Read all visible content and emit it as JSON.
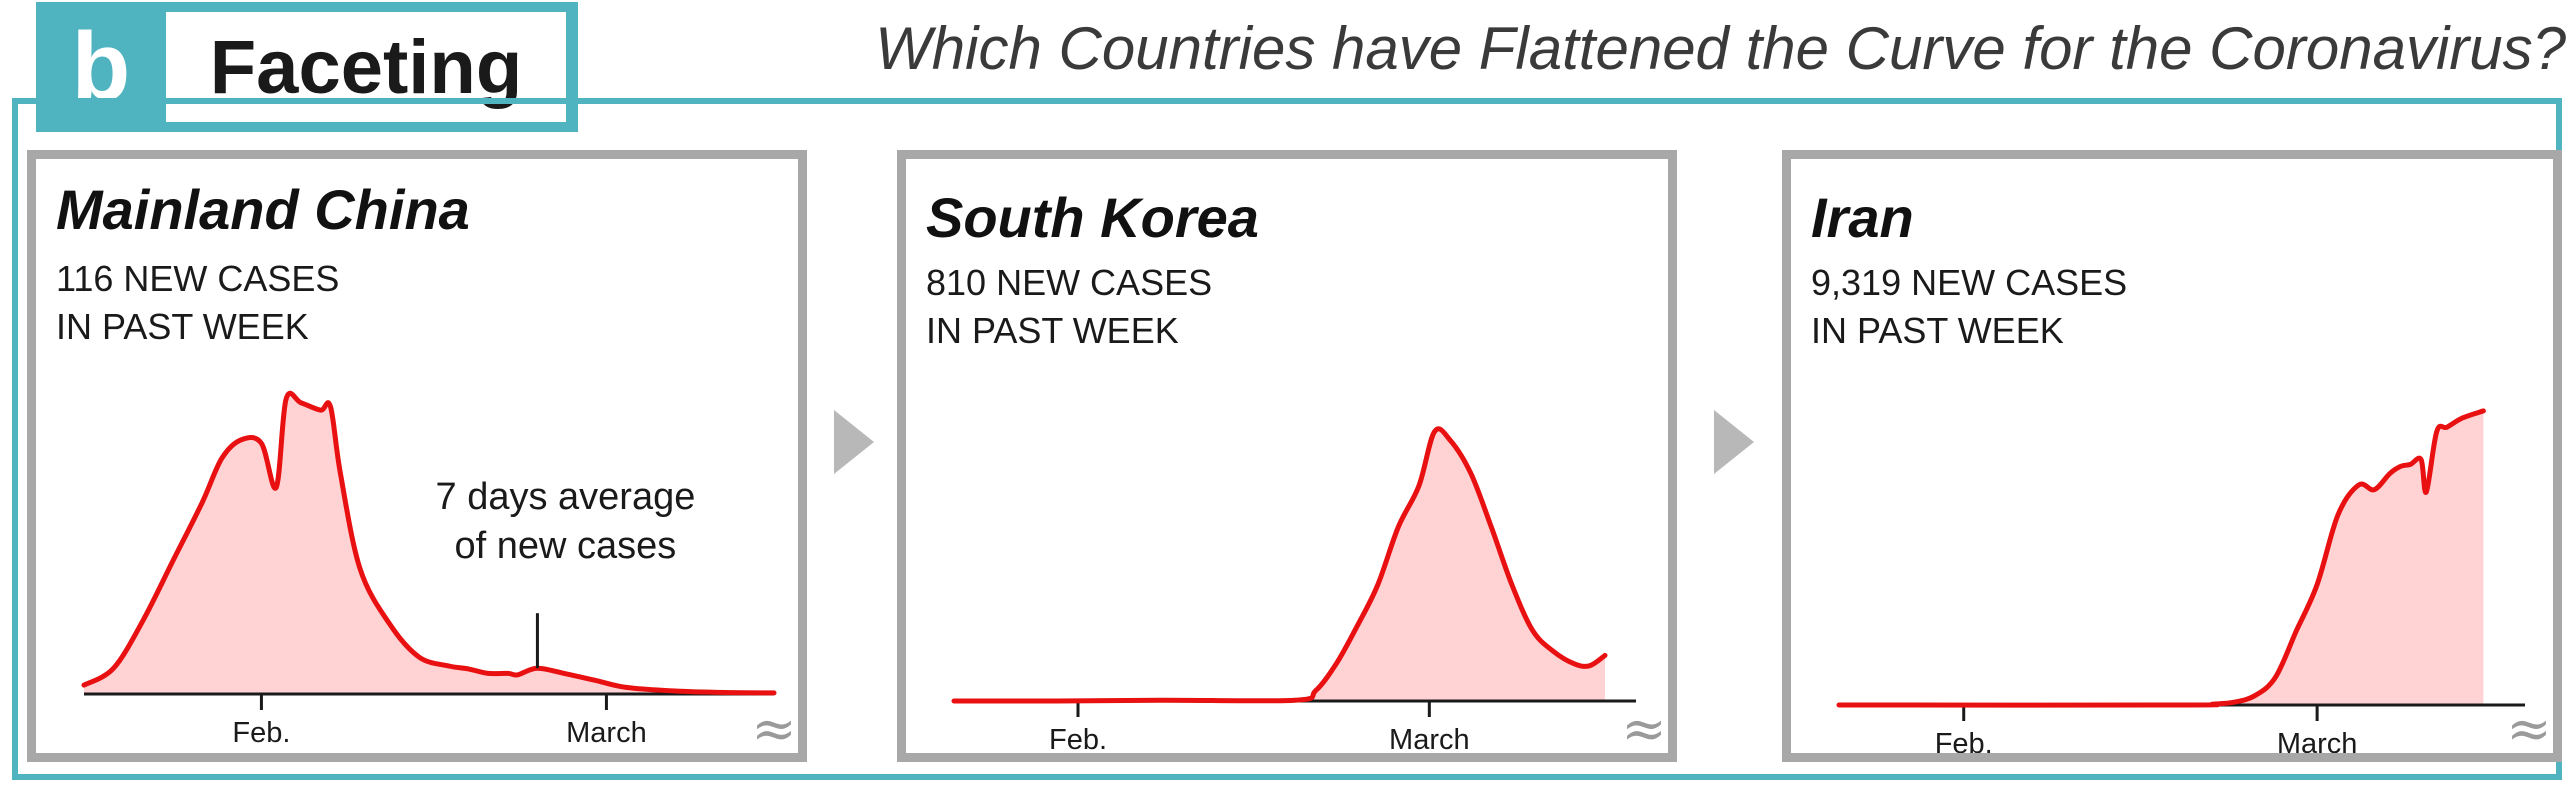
{
  "badge": {
    "letter": "b",
    "label": "Faceting"
  },
  "headline": "Which Countries have Flattened the Curve for the Coronavirus?",
  "logo_glyph": "≈",
  "colors": {
    "frame": "#4fb3c0",
    "panel_border": "#a8a8a8",
    "line": "#e81010",
    "fill": "#ffd2d4",
    "arrow": "#b8b8b8"
  },
  "chart_data": [
    {
      "type": "area",
      "title": "Mainland China",
      "subtitle_lines": [
        "116 NEW CASES",
        "IN PAST WEEK"
      ],
      "x_ticks": [
        {
          "label": "Feb.",
          "x": 18
        },
        {
          "label": "March",
          "x": 53
        }
      ],
      "xlim": [
        0,
        70
      ],
      "ylim": [
        0,
        4000
      ],
      "annotation": {
        "lines": [
          "7 days average",
          "of new cases"
        ],
        "x": 46
      },
      "points": [
        [
          0,
          120
        ],
        [
          3,
          350
        ],
        [
          6,
          1000
        ],
        [
          9,
          1800
        ],
        [
          12,
          2600
        ],
        [
          14,
          3200
        ],
        [
          16,
          3450
        ],
        [
          18,
          3400
        ],
        [
          19.5,
          2800
        ],
        [
          20.5,
          4000
        ],
        [
          22,
          3950
        ],
        [
          24,
          3850
        ],
        [
          25,
          3900
        ],
        [
          26,
          3000
        ],
        [
          28,
          1700
        ],
        [
          31,
          950
        ],
        [
          34,
          500
        ],
        [
          37,
          380
        ],
        [
          39,
          340
        ],
        [
          41,
          280
        ],
        [
          43,
          280
        ],
        [
          44,
          260
        ],
        [
          46,
          350
        ],
        [
          49,
          270
        ],
        [
          52,
          180
        ],
        [
          55,
          90
        ],
        [
          60,
          40
        ],
        [
          65,
          20
        ],
        [
          70,
          15
        ]
      ]
    },
    {
      "type": "area",
      "title": "South Korea",
      "subtitle_lines": [
        "810 NEW CASES",
        "IN PAST WEEK"
      ],
      "x_ticks": [
        {
          "label": "Feb.",
          "x": 12
        },
        {
          "label": "March",
          "x": 46
        }
      ],
      "xlim": [
        0,
        66
      ],
      "ylim": [
        0,
        700
      ],
      "points": [
        [
          0,
          0
        ],
        [
          10,
          0
        ],
        [
          20,
          2
        ],
        [
          33,
          2
        ],
        [
          35,
          25
        ],
        [
          37,
          90
        ],
        [
          39,
          180
        ],
        [
          41,
          280
        ],
        [
          43,
          420
        ],
        [
          45,
          520
        ],
        [
          46.5,
          650
        ],
        [
          48,
          630
        ],
        [
          50,
          550
        ],
        [
          52,
          420
        ],
        [
          54,
          280
        ],
        [
          56,
          170
        ],
        [
          58,
          120
        ],
        [
          60,
          90
        ],
        [
          61.5,
          85
        ],
        [
          63,
          110
        ]
      ]
    },
    {
      "type": "area",
      "title": "Iran",
      "subtitle_lines": [
        "9,319 NEW CASES",
        "IN PAST WEEK"
      ],
      "x_ticks": [
        {
          "label": "Feb.",
          "x": 12
        },
        {
          "label": "March",
          "x": 46
        }
      ],
      "xlim": [
        0,
        66
      ],
      "ylim": [
        0,
        1300
      ],
      "points": [
        [
          0,
          0
        ],
        [
          33,
          0
        ],
        [
          36,
          4
        ],
        [
          38,
          12
        ],
        [
          40,
          40
        ],
        [
          42,
          120
        ],
        [
          44,
          320
        ],
        [
          46,
          520
        ],
        [
          48,
          820
        ],
        [
          50,
          950
        ],
        [
          51.5,
          930
        ],
        [
          53,
          1000
        ],
        [
          54,
          1030
        ],
        [
          55,
          1040
        ],
        [
          56,
          1060
        ],
        [
          56.5,
          920
        ],
        [
          57.5,
          1180
        ],
        [
          58.5,
          1200
        ],
        [
          60,
          1240
        ],
        [
          62,
          1270
        ]
      ]
    }
  ]
}
